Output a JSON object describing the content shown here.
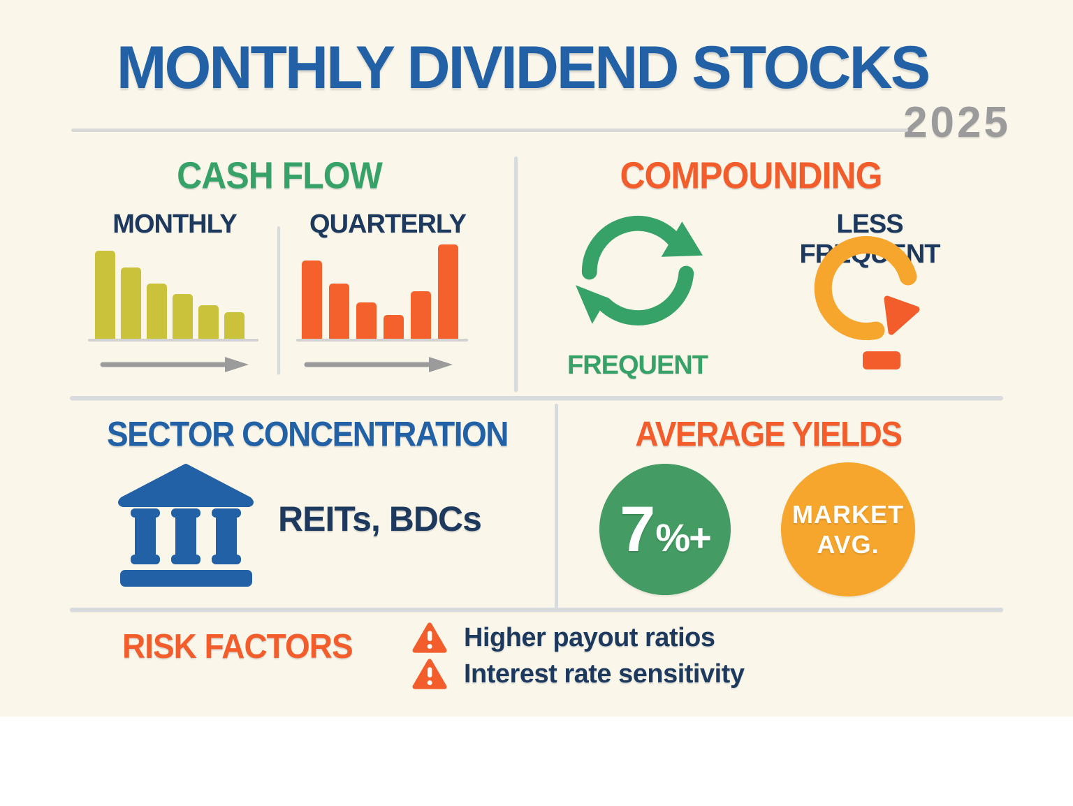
{
  "title": {
    "text": "MONTHLY DIVIDEND STOCKS",
    "year": "2025"
  },
  "sections": {
    "cash_flow": {
      "heading": "CASH FLOW",
      "monthly_label": "MONTHLY",
      "quarterly_label": "QUARTERLY"
    },
    "compounding": {
      "heading": "COMPOUNDING",
      "frequent_label": "FREQUENT",
      "less_frequent_label": "LESS FREQUENT"
    },
    "sector_concentration": {
      "heading": "SECTOR CONCENTRATION",
      "sectors": "REITs, BDCs"
    },
    "average_yields": {
      "heading": "AVERAGE YIELDS",
      "monthly_yield": "7%+",
      "monthly_yield_main": "7",
      "monthly_yield_suffix": "%+",
      "market_line1": "MARKET",
      "market_line2": "AVG."
    },
    "risk_factors": {
      "heading": "RISK FACTORS",
      "items": [
        "Higher payout ratios",
        "Interest rate sensitivity"
      ]
    }
  },
  "chart_data": [
    {
      "id": "monthly",
      "type": "bar",
      "title": "MONTHLY",
      "values": [
        127,
        103,
        80,
        65,
        49,
        39
      ],
      "bar_color": "#c9c23a",
      "trend": "steadily decreasing bars with rightward time arrow"
    },
    {
      "id": "quarterly",
      "type": "bar",
      "title": "QUARTERLY",
      "values": [
        113,
        80,
        53,
        35,
        69,
        136
      ],
      "bar_color": "#f4612d",
      "trend": "dips then spikes with rightward time arrow"
    }
  ],
  "colors": {
    "background": "#faf6ea",
    "title_blue": "#2261a5",
    "muted_gray": "#9b9b9b",
    "green": "#37a268",
    "green_circle": "#449b63",
    "navy": "#1d3a5e",
    "orange": "#f25d2b",
    "olive": "#c9c23a",
    "amber": "#f6a62d",
    "divider": "#d7dbde",
    "arrow_gray": "#9b9b9b"
  }
}
